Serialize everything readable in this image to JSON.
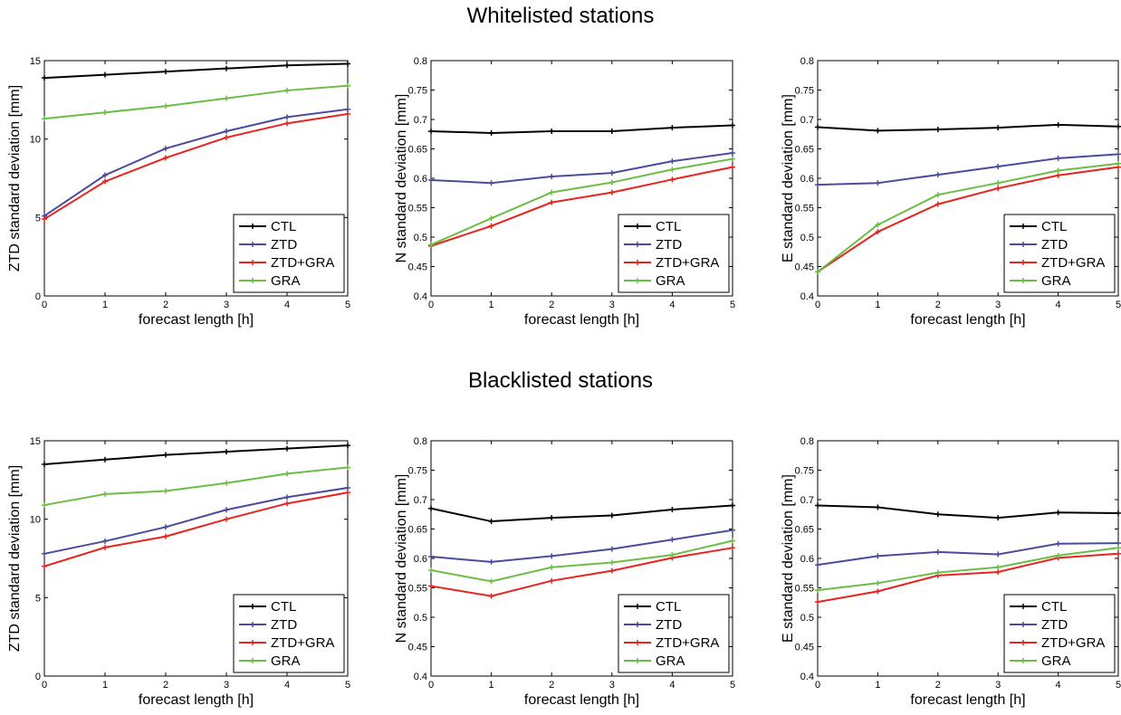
{
  "titles": {
    "top": "Whitelisted stations",
    "bottom": "Blacklisted stations"
  },
  "colors": {
    "CTL": "#000000",
    "ZTD": "#4b4b9c",
    "ZTD+GRA": "#e8231e",
    "GRA": "#6bbd45"
  },
  "chart_data": [
    {
      "type": "line",
      "group": "Whitelisted stations",
      "xlabel": "forecast length [h]",
      "ylabel": "ZTD standard deviation [mm]",
      "xlim": [
        0,
        5
      ],
      "ylim": [
        0,
        15
      ],
      "grid": false,
      "legend": "bottom-right",
      "xticks": [
        "0",
        "1",
        "2",
        "3",
        "4",
        "5"
      ],
      "yticks": [
        "0",
        "5",
        "10",
        "15"
      ],
      "x": [
        0,
        1,
        2,
        3,
        4,
        5
      ],
      "series": [
        {
          "name": "CTL",
          "values": [
            13.9,
            14.1,
            14.3,
            14.5,
            14.7,
            14.8
          ]
        },
        {
          "name": "ZTD",
          "values": [
            5.1,
            7.7,
            9.4,
            10.5,
            11.4,
            11.9
          ]
        },
        {
          "name": "ZTD+GRA",
          "values": [
            4.9,
            7.3,
            8.8,
            10.1,
            11.0,
            11.6
          ]
        },
        {
          "name": "GRA",
          "values": [
            11.3,
            11.7,
            12.1,
            12.6,
            13.1,
            13.4
          ]
        }
      ]
    },
    {
      "type": "line",
      "group": "Whitelisted stations",
      "xlabel": "forecast length [h]",
      "ylabel": "N standard deviation [mm]",
      "xlim": [
        0,
        5
      ],
      "ylim": [
        0.4,
        0.8
      ],
      "grid": false,
      "legend": "bottom-right",
      "xticks": [
        "0",
        "1",
        "2",
        "3",
        "4",
        "5"
      ],
      "yticks": [
        "0.4",
        "0.45",
        "0.5",
        "0.55",
        "0.6",
        "0.65",
        "0.7",
        "0.75",
        "0.8"
      ],
      "x": [
        0,
        1,
        2,
        3,
        4,
        5
      ],
      "series": [
        {
          "name": "CTL",
          "values": [
            0.68,
            0.677,
            0.68,
            0.68,
            0.686,
            0.69
          ]
        },
        {
          "name": "ZTD",
          "values": [
            0.597,
            0.592,
            0.603,
            0.609,
            0.629,
            0.643
          ]
        },
        {
          "name": "ZTD+GRA",
          "values": [
            0.485,
            0.519,
            0.559,
            0.576,
            0.598,
            0.619
          ]
        },
        {
          "name": "GRA",
          "values": [
            0.487,
            0.532,
            0.576,
            0.593,
            0.615,
            0.633
          ]
        }
      ]
    },
    {
      "type": "line",
      "group": "Whitelisted stations",
      "xlabel": "forecast length [h]",
      "ylabel": "E standard deviation [mm]",
      "xlim": [
        0,
        5
      ],
      "ylim": [
        0.4,
        0.8
      ],
      "grid": false,
      "legend": "bottom-right",
      "xticks": [
        "0",
        "1",
        "2",
        "3",
        "4",
        "5"
      ],
      "yticks": [
        "0.4",
        "0.45",
        "0.5",
        "0.55",
        "0.6",
        "0.65",
        "0.7",
        "0.75",
        "0.8"
      ],
      "x": [
        0,
        1,
        2,
        3,
        4,
        5
      ],
      "series": [
        {
          "name": "CTL",
          "values": [
            0.687,
            0.681,
            0.683,
            0.686,
            0.691,
            0.688
          ]
        },
        {
          "name": "ZTD",
          "values": [
            0.589,
            0.592,
            0.606,
            0.62,
            0.634,
            0.641
          ]
        },
        {
          "name": "ZTD+GRA",
          "values": [
            0.441,
            0.509,
            0.556,
            0.583,
            0.605,
            0.619
          ]
        },
        {
          "name": "GRA",
          "values": [
            0.441,
            0.521,
            0.572,
            0.592,
            0.613,
            0.625
          ]
        }
      ]
    },
    {
      "type": "line",
      "group": "Blacklisted stations",
      "xlabel": "forecast length [h]",
      "ylabel": "ZTD standard deviation [mm]",
      "xlim": [
        0,
        5
      ],
      "ylim": [
        0,
        15
      ],
      "grid": false,
      "legend": "bottom-right",
      "xticks": [
        "0",
        "1",
        "2",
        "3",
        "4",
        "5"
      ],
      "yticks": [
        "0",
        "5",
        "10",
        "15"
      ],
      "x": [
        0,
        1,
        2,
        3,
        4,
        5
      ],
      "series": [
        {
          "name": "CTL",
          "values": [
            13.5,
            13.8,
            14.1,
            14.3,
            14.5,
            14.7
          ]
        },
        {
          "name": "ZTD",
          "values": [
            7.8,
            8.6,
            9.5,
            10.6,
            11.4,
            12.0
          ]
        },
        {
          "name": "ZTD+GRA",
          "values": [
            7.0,
            8.2,
            8.9,
            10.0,
            11.0,
            11.7
          ]
        },
        {
          "name": "GRA",
          "values": [
            10.9,
            11.6,
            11.8,
            12.3,
            12.9,
            13.3
          ]
        }
      ]
    },
    {
      "type": "line",
      "group": "Blacklisted stations",
      "xlabel": "forecast length [h]",
      "ylabel": "N standard deviation [mm]",
      "xlim": [
        0,
        5
      ],
      "ylim": [
        0.4,
        0.8
      ],
      "grid": false,
      "legend": "bottom-right",
      "xticks": [
        "0",
        "1",
        "2",
        "3",
        "4",
        "5"
      ],
      "yticks": [
        "0.4",
        "0.45",
        "0.5",
        "0.55",
        "0.6",
        "0.65",
        "0.7",
        "0.75",
        "0.8"
      ],
      "x": [
        0,
        1,
        2,
        3,
        4,
        5
      ],
      "series": [
        {
          "name": "CTL",
          "values": [
            0.685,
            0.663,
            0.669,
            0.673,
            0.683,
            0.69
          ]
        },
        {
          "name": "ZTD",
          "values": [
            0.603,
            0.594,
            0.604,
            0.616,
            0.632,
            0.648
          ]
        },
        {
          "name": "ZTD+GRA",
          "values": [
            0.553,
            0.536,
            0.562,
            0.579,
            0.601,
            0.618
          ]
        },
        {
          "name": "GRA",
          "values": [
            0.58,
            0.561,
            0.585,
            0.593,
            0.606,
            0.63
          ]
        }
      ]
    },
    {
      "type": "line",
      "group": "Blacklisted stations",
      "xlabel": "forecast length [h]",
      "ylabel": "E standard deviation [mm]",
      "xlim": [
        0,
        5
      ],
      "ylim": [
        0.4,
        0.8
      ],
      "grid": false,
      "legend": "bottom-right",
      "xticks": [
        "0",
        "1",
        "2",
        "3",
        "4",
        "5"
      ],
      "yticks": [
        "0.4",
        "0.45",
        "0.5",
        "0.55",
        "0.6",
        "0.65",
        "0.7",
        "0.75",
        "0.8"
      ],
      "x": [
        0,
        1,
        2,
        3,
        4,
        5
      ],
      "series": [
        {
          "name": "CTL",
          "values": [
            0.69,
            0.687,
            0.675,
            0.669,
            0.678,
            0.677
          ]
        },
        {
          "name": "ZTD",
          "values": [
            0.589,
            0.604,
            0.611,
            0.607,
            0.625,
            0.626
          ]
        },
        {
          "name": "ZTD+GRA",
          "values": [
            0.526,
            0.544,
            0.571,
            0.577,
            0.601,
            0.608
          ]
        },
        {
          "name": "GRA",
          "values": [
            0.546,
            0.558,
            0.576,
            0.585,
            0.605,
            0.618
          ]
        }
      ]
    }
  ]
}
